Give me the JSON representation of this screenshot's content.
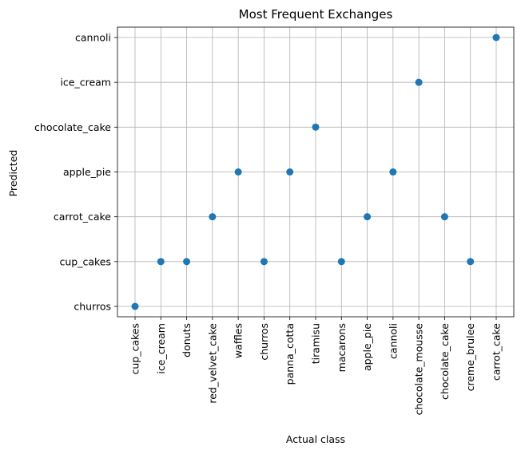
{
  "chart_data": {
    "type": "scatter",
    "title": "Most Frequent Exchanges",
    "xlabel": "Actual class",
    "ylabel": "Predicted",
    "grid": true,
    "x_categories": [
      "cup_cakes",
      "ice_cream",
      "donuts",
      "red_velvet_cake",
      "waffles",
      "churros",
      "panna_cotta",
      "tiramisu",
      "macarons",
      "apple_pie",
      "cannoli",
      "chocolate_mousse",
      "chocolate_cake",
      "creme_brulee",
      "carrot_cake"
    ],
    "y_categories": [
      "churros",
      "cup_cakes",
      "carrot_cake",
      "apple_pie",
      "chocolate_cake",
      "ice_cream",
      "cannoli"
    ],
    "points": [
      {
        "x": "cup_cakes",
        "y": "churros"
      },
      {
        "x": "ice_cream",
        "y": "cup_cakes"
      },
      {
        "x": "donuts",
        "y": "cup_cakes"
      },
      {
        "x": "red_velvet_cake",
        "y": "carrot_cake"
      },
      {
        "x": "waffles",
        "y": "apple_pie"
      },
      {
        "x": "churros",
        "y": "cup_cakes"
      },
      {
        "x": "panna_cotta",
        "y": "apple_pie"
      },
      {
        "x": "tiramisu",
        "y": "chocolate_cake"
      },
      {
        "x": "macarons",
        "y": "cup_cakes"
      },
      {
        "x": "apple_pie",
        "y": "carrot_cake"
      },
      {
        "x": "cannoli",
        "y": "apple_pie"
      },
      {
        "x": "chocolate_mousse",
        "y": "ice_cream"
      },
      {
        "x": "chocolate_cake",
        "y": "carrot_cake"
      },
      {
        "x": "creme_brulee",
        "y": "cup_cakes"
      },
      {
        "x": "carrot_cake",
        "y": "cannoli"
      }
    ],
    "colors": {
      "marker": "#1f77b4",
      "grid": "#b0b0b0",
      "axes": "#000000"
    }
  }
}
